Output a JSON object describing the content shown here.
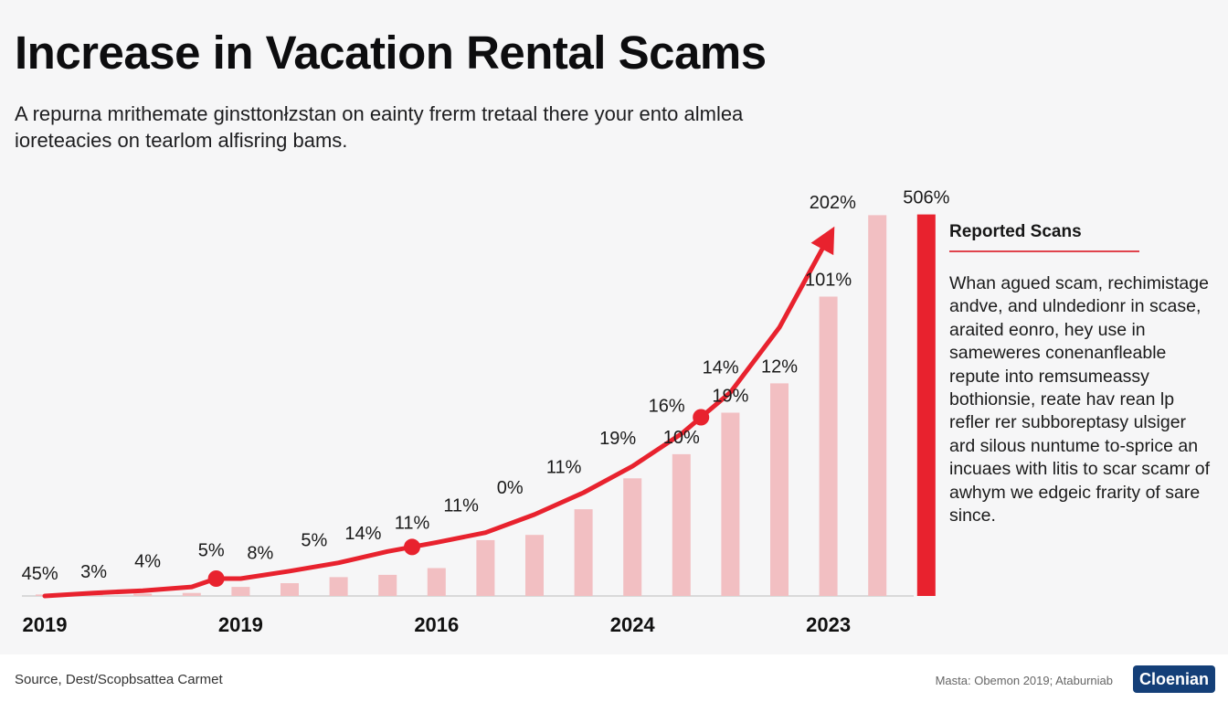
{
  "title": "Increase in Vacation Rental Scams",
  "subtitle": "A repurna mrithemate ginsttonłzstan on eainty frerm tretaal there your ento almlea ioreteacies on tearlom alfisring bams.",
  "chart_data": {
    "type": "bar",
    "title": "Increase in Vacation Rental Scams",
    "xlabel": "",
    "ylabel": "",
    "ylim": [
      0,
      560
    ],
    "grid": false,
    "legend": "none",
    "bar_color": "#f2bfc2",
    "highlight_color": "#e8222e",
    "line_color": "#e8222e",
    "x_tick_labels": [
      "2019",
      "2019",
      "2016",
      "2024",
      "2023"
    ],
    "bars": [
      {
        "value": 2
      },
      {
        "value": 2
      },
      {
        "value": 3
      },
      {
        "value": 4
      },
      {
        "value": 12
      },
      {
        "value": 17
      },
      {
        "value": 25
      },
      {
        "value": 28
      },
      {
        "value": 37
      },
      {
        "value": 74
      },
      {
        "value": 81
      },
      {
        "value": 115
      },
      {
        "value": 156
      },
      {
        "value": 188
      },
      {
        "value": 243
      },
      {
        "value": 282
      },
      {
        "value": 397
      },
      {
        "value": 505
      },
      {
        "value": 506,
        "highlight": true
      }
    ],
    "line_points": [
      {
        "x": 0,
        "y": 0
      },
      {
        "x": 1,
        "y": 4
      },
      {
        "x": 2,
        "y": 7
      },
      {
        "x": 3,
        "y": 12
      },
      {
        "x": 3.5,
        "y": 23
      },
      {
        "x": 4,
        "y": 23
      },
      {
        "x": 5,
        "y": 33
      },
      {
        "x": 6,
        "y": 44
      },
      {
        "x": 7,
        "y": 59
      },
      {
        "x": 8,
        "y": 71
      },
      {
        "x": 9,
        "y": 84
      },
      {
        "x": 10,
        "y": 108
      },
      {
        "x": 11,
        "y": 137
      },
      {
        "x": 12,
        "y": 172
      },
      {
        "x": 13,
        "y": 215
      },
      {
        "x": 14,
        "y": 270
      },
      {
        "x": 15,
        "y": 356
      },
      {
        "x": 16,
        "y": 475
      }
    ],
    "line_markers": [
      3.5,
      7.5,
      13.4
    ],
    "line_labels": [
      {
        "text": "45%",
        "x": -0.1,
        "y": 22
      },
      {
        "text": "3%",
        "x": 1.0,
        "y": 24
      },
      {
        "text": "4%",
        "x": 2.1,
        "y": 38
      },
      {
        "text": "5%",
        "x": 3.4,
        "y": 53
      },
      {
        "text": "8%",
        "x": 4.4,
        "y": 49
      },
      {
        "text": "5%",
        "x": 5.5,
        "y": 66
      },
      {
        "text": "14%",
        "x": 6.5,
        "y": 75
      },
      {
        "text": "11%",
        "x": 7.5,
        "y": 89
      },
      {
        "text": "11%",
        "x": 8.5,
        "y": 112
      },
      {
        "text": "0%",
        "x": 9.5,
        "y": 136
      },
      {
        "text": "11%",
        "x": 10.6,
        "y": 163
      },
      {
        "text": "19%",
        "x": 11.7,
        "y": 201
      },
      {
        "text": "16%",
        "x": 12.7,
        "y": 244
      },
      {
        "text": "14%",
        "x": 13.8,
        "y": 295
      }
    ],
    "bar_labels": [
      {
        "text": "10%",
        "bar": 13
      },
      {
        "text": "19%",
        "bar": 14
      },
      {
        "text": "12%",
        "bar": 15
      },
      {
        "text": "101%",
        "bar": 16
      },
      {
        "text": "506%",
        "bar": 18
      }
    ],
    "arrow_label": "202%"
  },
  "side_panel": {
    "title": "Reported Scans",
    "body": "Whan agued scam, rechimistage andve, and ulndedionr in scase, araited eonro, hey use in sameweres conenanfleable repute into remsumeassy bothionsie, reate hav rean lp refler rer subboreptasy ulsiger ard silous nuntume to-sprice an incuaes with litis to scar scamr of awhym we edgeic frarity of sare since."
  },
  "footer": {
    "source": "Source, Dest/Scopbsattea Carmet",
    "credit": "Masta: Obemon 2019; Ataburniab",
    "brand": "Cloenian"
  }
}
